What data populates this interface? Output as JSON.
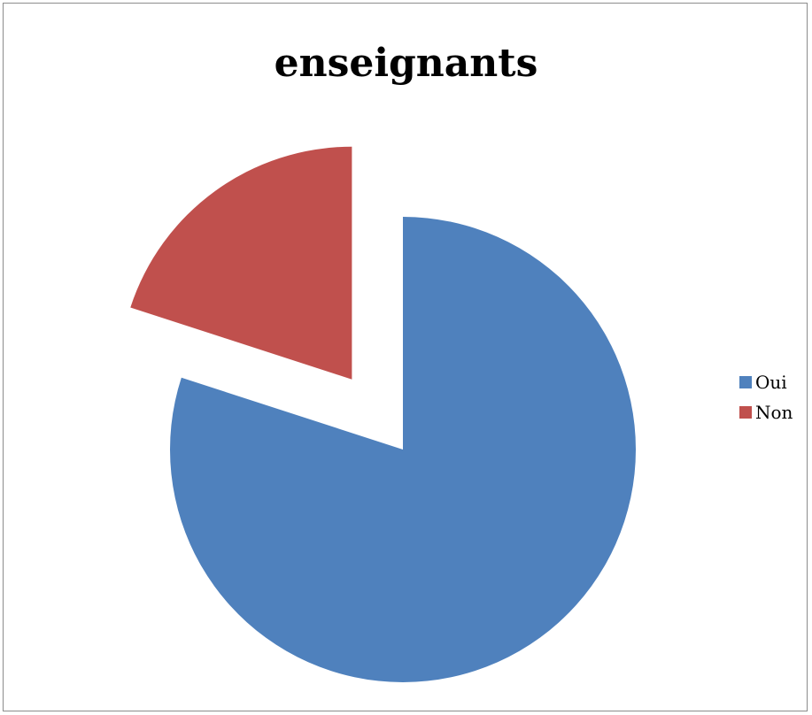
{
  "chart_data": {
    "type": "pie",
    "title": "enseignants",
    "slices": [
      {
        "label": "Oui",
        "value": 80,
        "color": "#4F81BD",
        "exploded": false
      },
      {
        "label": "Non",
        "value": 20,
        "color": "#C0504D",
        "exploded": true
      }
    ],
    "legend_position": "right"
  }
}
